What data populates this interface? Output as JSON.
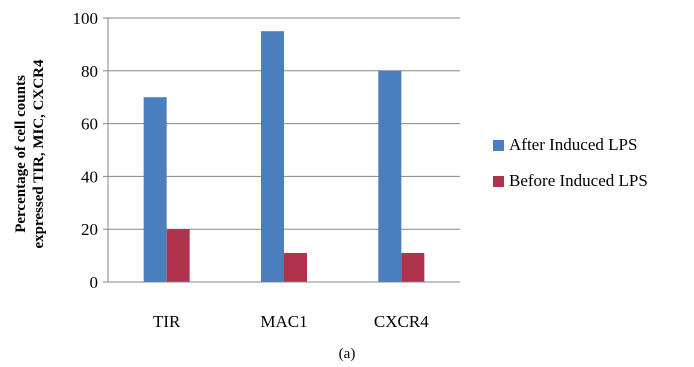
{
  "chart_data": {
    "type": "bar",
    "categories": [
      "TIR",
      "MAC1",
      "CXCR4"
    ],
    "series": [
      {
        "name": "After Induced LPS",
        "values": [
          70,
          95,
          80
        ],
        "color": "#4a7ebf"
      },
      {
        "name": "Before Induced LPS",
        "values": [
          20,
          11,
          11
        ],
        "color": "#b0324d"
      }
    ],
    "ylim": [
      0,
      100
    ],
    "yticks": [
      0,
      20,
      40,
      60,
      80,
      100
    ],
    "ylabel_line1": "Percentage of cell counts",
    "ylabel_line2": "expressed TIR, MIC, CXCR4",
    "grid": true,
    "legend_position": "right",
    "caption": "(a)"
  }
}
